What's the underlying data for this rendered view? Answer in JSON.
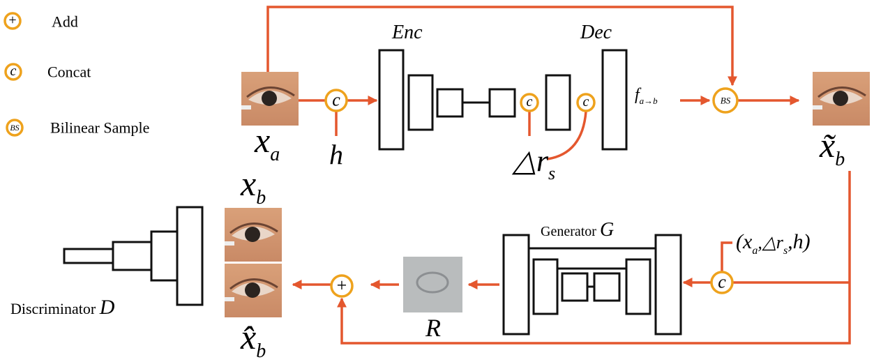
{
  "legend": [
    {
      "symbol": "+",
      "label": "Add"
    },
    {
      "symbol": "c",
      "label": "Concat"
    },
    {
      "symbol": "BS",
      "label": "Bilinear Sample"
    }
  ],
  "labels": {
    "encoder": "Enc",
    "decoder": "Dec",
    "input": {
      "base": "x",
      "sub": "a"
    },
    "head_pose": "h",
    "delta": {
      "base": "△r",
      "sub": "s"
    },
    "flow": {
      "base": "f",
      "sub": "a→b"
    },
    "warped": {
      "base": "x̃",
      "sub": "b"
    },
    "target": {
      "base": "x",
      "sub": "b"
    },
    "refined": {
      "base": "x̂",
      "sub": "b"
    },
    "generator": {
      "text": "Generator",
      "var": "G"
    },
    "condition": [
      "(x",
      "a",
      ",△r",
      "s",
      ",h)"
    ],
    "residual": "R",
    "discriminator": {
      "text": "Discriminator",
      "var": "D"
    }
  }
}
